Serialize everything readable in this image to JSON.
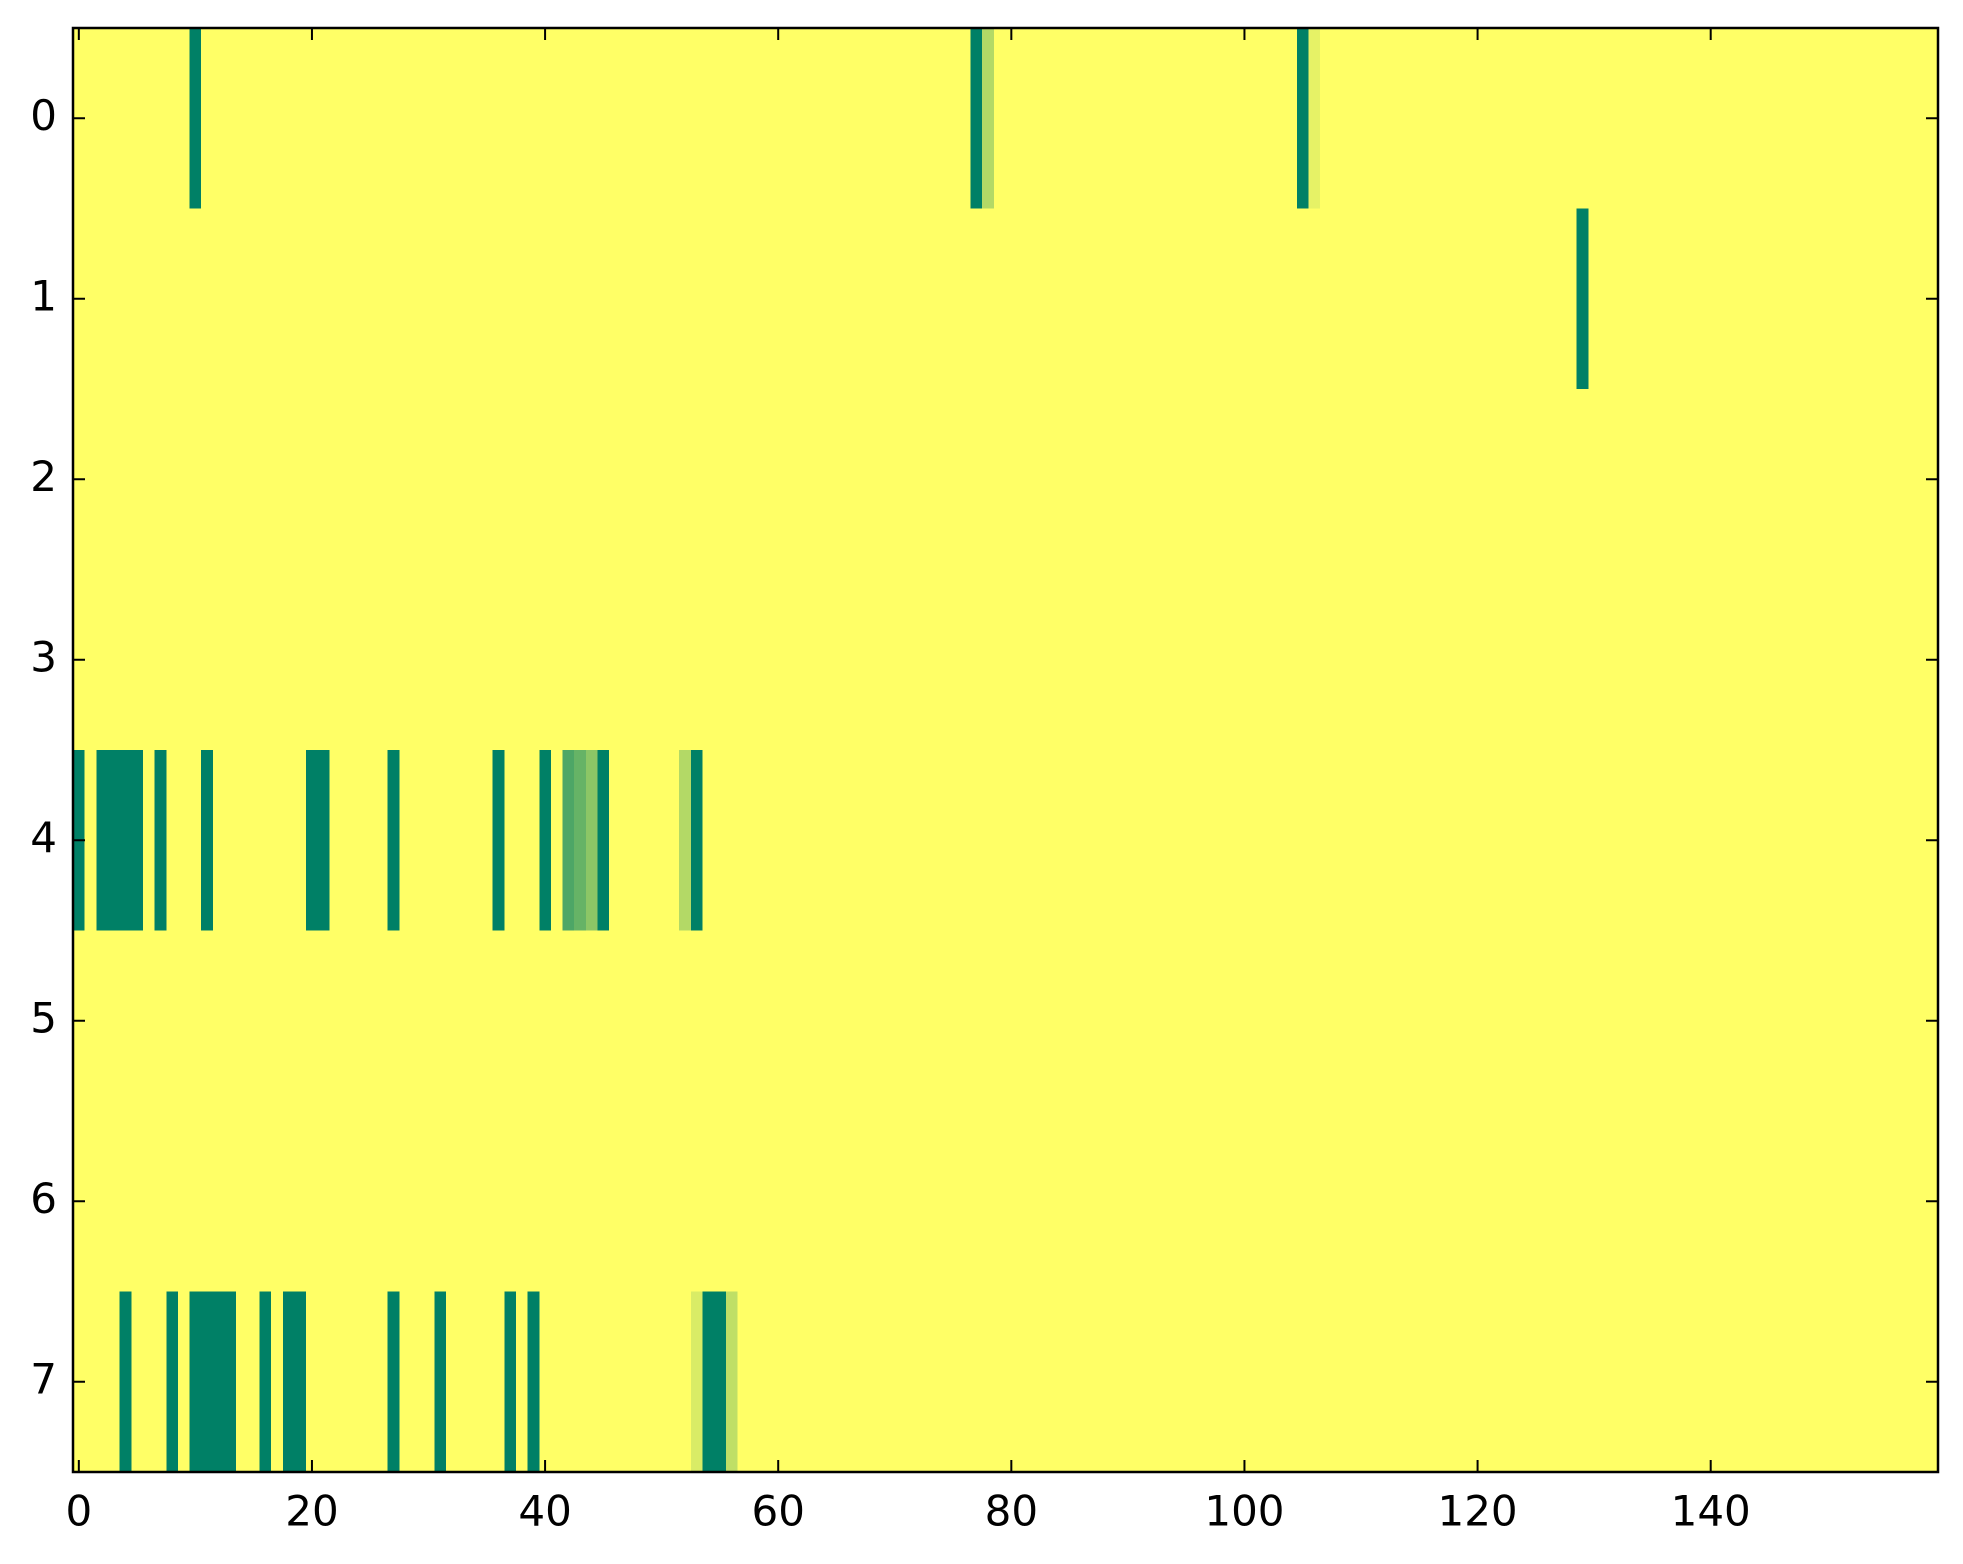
{
  "chart_data": {
    "type": "heatmap",
    "colors": [
      "#ffff66",
      "#008066"
    ],
    "clim": [
      0,
      1
    ],
    "xlim": [
      -0.5,
      159.5
    ],
    "ylim": [
      7.5,
      -0.5
    ],
    "xticks": [
      0,
      20,
      40,
      60,
      80,
      100,
      120,
      140
    ],
    "yticks": [
      0,
      1,
      2,
      3,
      4,
      5,
      6,
      7
    ],
    "values": [
      [
        0,
        0,
        0,
        0,
        0,
        0,
        0,
        0,
        0,
        0,
        1,
        0,
        0,
        0,
        0,
        0,
        0,
        0,
        0,
        0,
        0,
        0,
        0,
        0,
        0,
        0,
        0,
        0,
        0,
        0,
        0,
        0,
        0,
        0,
        0,
        0,
        0,
        0,
        0,
        0,
        0,
        0,
        0,
        0,
        0,
        0,
        0,
        0,
        0,
        0,
        0,
        0,
        0,
        0,
        0,
        0,
        0,
        0,
        0,
        0,
        0,
        0,
        0,
        0,
        0,
        0,
        0,
        0,
        0,
        0,
        0,
        0,
        0,
        0,
        0,
        0,
        0,
        1,
        0.3,
        0,
        0,
        0,
        0,
        0,
        0,
        0,
        0,
        0,
        0,
        0,
        0,
        0,
        0,
        0,
        0,
        0,
        0,
        0,
        0,
        0,
        0,
        0,
        0,
        0,
        0,
        1,
        0.1,
        0,
        0,
        0,
        0,
        0,
        0,
        0,
        0,
        0,
        0,
        0,
        0,
        0,
        0,
        0,
        0,
        0,
        0,
        0,
        0,
        0,
        0,
        0,
        0,
        0,
        0,
        0,
        0,
        0,
        0,
        0,
        0,
        0,
        0,
        0,
        0,
        0,
        0,
        0,
        0,
        0,
        0,
        0,
        0,
        0,
        0,
        0,
        0,
        0,
        0,
        0,
        0,
        0
      ],
      [
        0,
        0,
        0,
        0,
        0,
        0,
        0,
        0,
        0,
        0,
        0,
        0,
        0,
        0,
        0,
        0,
        0,
        0,
        0,
        0,
        0,
        0,
        0,
        0,
        0,
        0,
        0,
        0,
        0,
        0,
        0,
        0,
        0,
        0,
        0,
        0,
        0,
        0,
        0,
        0,
        0,
        0,
        0,
        0,
        0,
        0,
        0,
        0,
        0,
        0,
        0,
        0,
        0,
        0,
        0,
        0,
        0,
        0,
        0,
        0,
        0,
        0,
        0,
        0,
        0,
        0,
        0,
        0,
        0,
        0,
        0,
        0,
        0,
        0,
        0,
        0,
        0,
        0,
        0,
        0,
        0,
        0,
        0,
        0,
        0,
        0,
        0,
        0,
        0,
        0,
        0,
        0,
        0,
        0,
        0,
        0,
        0,
        0,
        0,
        0,
        0,
        0,
        0,
        0,
        0,
        0,
        0,
        0,
        0,
        0,
        0,
        0,
        0,
        0,
        0,
        0,
        0,
        0,
        0,
        0,
        0,
        0,
        0,
        0,
        0,
        0,
        0,
        0,
        0,
        1,
        0,
        0,
        0,
        0,
        0,
        0,
        0,
        0,
        0,
        0,
        0,
        0,
        0,
        0,
        0,
        0,
        0,
        0,
        0,
        0,
        0,
        0,
        0,
        0,
        0,
        0,
        0,
        0,
        0,
        0
      ],
      [
        0,
        0,
        0,
        0,
        0,
        0,
        0,
        0,
        0,
        0,
        0,
        0,
        0,
        0,
        0,
        0,
        0,
        0,
        0,
        0,
        0,
        0,
        0,
        0,
        0,
        0,
        0,
        0,
        0,
        0,
        0,
        0,
        0,
        0,
        0,
        0,
        0,
        0,
        0,
        0,
        0,
        0,
        0,
        0,
        0,
        0,
        0,
        0,
        0,
        0,
        0,
        0,
        0,
        0,
        0,
        0,
        0,
        0,
        0,
        0,
        0,
        0,
        0,
        0,
        0,
        0,
        0,
        0,
        0,
        0,
        0,
        0,
        0,
        0,
        0,
        0,
        0,
        0,
        0,
        0,
        0,
        0,
        0,
        0,
        0,
        0,
        0,
        0,
        0,
        0,
        0,
        0,
        0,
        0,
        0,
        0,
        0,
        0,
        0,
        0,
        0,
        0,
        0,
        0,
        0,
        0,
        0,
        0,
        0,
        0,
        0,
        0,
        0,
        0,
        0,
        0,
        0,
        0,
        0,
        0,
        0,
        0,
        0,
        0,
        0,
        0,
        0,
        0,
        0,
        0,
        0,
        0,
        0,
        0,
        0,
        0,
        0,
        0,
        0,
        0,
        0,
        0,
        0,
        0,
        0,
        0,
        0,
        0,
        0,
        0,
        0,
        0,
        0,
        0,
        0,
        0,
        0,
        0,
        0,
        0
      ],
      [
        0,
        0,
        0,
        0,
        0,
        0,
        0,
        0,
        0,
        0,
        0,
        0,
        0,
        0,
        0,
        0,
        0,
        0,
        0,
        0,
        0,
        0,
        0,
        0,
        0,
        0,
        0,
        0,
        0,
        0,
        0,
        0,
        0,
        0,
        0,
        0,
        0,
        0,
        0,
        0,
        0,
        0,
        0,
        0,
        0,
        0,
        0,
        0,
        0,
        0,
        0,
        0,
        0,
        0,
        0,
        0,
        0,
        0,
        0,
        0,
        0,
        0,
        0,
        0,
        0,
        0,
        0,
        0,
        0,
        0,
        0,
        0,
        0,
        0,
        0,
        0,
        0,
        0,
        0,
        0,
        0,
        0,
        0,
        0,
        0,
        0,
        0,
        0,
        0,
        0,
        0,
        0,
        0,
        0,
        0,
        0,
        0,
        0,
        0,
        0,
        0,
        0,
        0,
        0,
        0,
        0,
        0,
        0,
        0,
        0,
        0,
        0,
        0,
        0,
        0,
        0,
        0,
        0,
        0,
        0,
        0,
        0,
        0,
        0,
        0,
        0,
        0,
        0,
        0,
        0,
        0,
        0,
        0,
        0,
        0,
        0,
        0,
        0,
        0,
        0,
        0,
        0,
        0,
        0,
        0,
        0,
        0,
        0,
        0,
        0,
        0,
        0,
        0,
        0,
        0,
        0,
        0,
        0,
        0,
        0
      ],
      [
        1,
        0,
        1,
        1,
        1,
        1,
        0,
        1,
        0,
        0,
        0,
        1,
        0,
        0,
        0,
        0,
        0,
        0,
        0,
        0,
        1,
        1,
        0,
        0,
        0,
        0,
        0,
        1,
        0,
        0,
        0,
        0,
        0,
        0,
        0,
        0,
        1,
        0,
        0,
        0,
        1,
        0,
        0.7,
        0.6,
        0.45,
        1,
        0,
        0,
        0,
        0,
        0,
        0,
        0.3,
        1,
        0,
        0,
        0,
        0,
        0,
        0,
        0,
        0,
        0,
        0,
        0,
        0,
        0,
        0,
        0,
        0,
        0,
        0,
        0,
        0,
        0,
        0,
        0,
        0,
        0,
        0,
        0,
        0,
        0,
        0,
        0,
        0,
        0,
        0,
        0,
        0,
        0,
        0,
        0,
        0,
        0,
        0,
        0,
        0,
        0,
        0,
        0,
        0,
        0,
        0,
        0,
        0,
        0,
        0,
        0,
        0,
        0,
        0,
        0,
        0,
        0,
        0,
        0,
        0,
        0,
        0,
        0,
        0,
        0,
        0,
        0,
        0,
        0,
        0,
        0,
        0,
        0,
        0,
        0,
        0,
        0,
        0,
        0,
        0,
        0,
        0,
        0,
        0,
        0,
        0,
        0,
        0,
        0,
        0,
        0,
        0,
        0,
        0,
        0,
        0,
        0,
        0,
        0,
        0,
        0,
        0
      ],
      [
        0,
        0,
        0,
        0,
        0,
        0,
        0,
        0,
        0,
        0,
        0,
        0,
        0,
        0,
        0,
        0,
        0,
        0,
        0,
        0,
        0,
        0,
        0,
        0,
        0,
        0,
        0,
        0,
        0,
        0,
        0,
        0,
        0,
        0,
        0,
        0,
        0,
        0,
        0,
        0,
        0,
        0,
        0,
        0,
        0,
        0,
        0,
        0,
        0,
        0,
        0,
        0,
        0,
        0,
        0,
        0,
        0,
        0,
        0,
        0,
        0,
        0,
        0,
        0,
        0,
        0,
        0,
        0,
        0,
        0,
        0,
        0,
        0,
        0,
        0,
        0,
        0,
        0,
        0,
        0,
        0,
        0,
        0,
        0,
        0,
        0,
        0,
        0,
        0,
        0,
        0,
        0,
        0,
        0,
        0,
        0,
        0,
        0,
        0,
        0,
        0,
        0,
        0,
        0,
        0,
        0,
        0,
        0,
        0,
        0,
        0,
        0,
        0,
        0,
        0,
        0,
        0,
        0,
        0,
        0,
        0,
        0,
        0,
        0,
        0,
        0,
        0,
        0,
        0,
        0,
        0,
        0,
        0,
        0,
        0,
        0,
        0,
        0,
        0,
        0,
        0,
        0,
        0,
        0,
        0,
        0,
        0,
        0,
        0,
        0,
        0,
        0,
        0,
        0,
        0,
        0,
        0,
        0,
        0,
        0
      ],
      [
        0,
        0,
        0,
        0,
        0,
        0,
        0,
        0,
        0,
        0,
        0,
        0,
        0,
        0,
        0,
        0,
        0,
        0,
        0,
        0,
        0,
        0,
        0,
        0,
        0,
        0,
        0,
        0,
        0,
        0,
        0,
        0,
        0,
        0,
        0,
        0,
        0,
        0,
        0,
        0,
        0,
        0,
        0,
        0,
        0,
        0,
        0,
        0,
        0,
        0,
        0,
        0,
        0,
        0,
        0,
        0,
        0,
        0,
        0,
        0,
        0,
        0,
        0,
        0,
        0,
        0,
        0,
        0,
        0,
        0,
        0,
        0,
        0,
        0,
        0,
        0,
        0,
        0,
        0,
        0,
        0,
        0,
        0,
        0,
        0,
        0,
        0,
        0,
        0,
        0,
        0,
        0,
        0,
        0,
        0,
        0,
        0,
        0,
        0,
        0,
        0,
        0,
        0,
        0,
        0,
        0,
        0,
        0,
        0,
        0,
        0,
        0,
        0,
        0,
        0,
        0,
        0,
        0,
        0,
        0,
        0,
        0,
        0,
        0,
        0,
        0,
        0,
        0,
        0,
        0,
        0,
        0,
        0,
        0,
        0,
        0,
        0,
        0,
        0,
        0,
        0,
        0,
        0,
        0,
        0,
        0,
        0,
        0,
        0,
        0,
        0,
        0,
        0,
        0,
        0,
        0,
        0,
        0,
        0,
        0
      ],
      [
        0,
        0,
        0,
        0,
        1,
        0,
        0,
        0,
        1,
        0,
        1,
        1,
        1,
        1,
        0,
        0,
        1,
        0,
        1,
        1,
        0,
        0,
        0,
        0,
        0,
        0,
        0,
        1,
        0,
        0,
        0,
        1,
        0,
        0,
        0,
        0,
        0,
        1,
        0,
        1,
        0,
        0,
        0,
        0,
        0,
        0,
        0,
        0,
        0,
        0,
        0,
        0,
        0,
        0.15,
        1,
        1,
        0.25,
        0,
        0,
        0,
        0,
        0,
        0,
        0,
        0,
        0,
        0,
        0,
        0,
        0,
        0,
        0,
        0,
        0,
        0,
        0,
        0,
        0,
        0,
        0,
        0,
        0,
        0,
        0,
        0,
        0,
        0,
        0,
        0,
        0,
        0,
        0,
        0,
        0,
        0,
        0,
        0,
        0,
        0,
        0,
        0,
        0,
        0,
        0,
        0,
        0,
        0,
        0,
        0,
        0,
        0,
        0,
        0,
        0,
        0,
        0,
        0,
        0,
        0,
        0,
        0,
        0,
        0,
        0,
        0,
        0,
        0,
        0,
        0,
        0,
        0,
        0,
        0,
        0,
        0,
        0,
        0,
        0,
        0,
        0,
        0,
        0,
        0,
        0,
        0,
        0,
        0,
        0,
        0,
        0,
        0,
        0,
        0,
        0,
        0,
        0,
        0,
        0,
        0,
        0
      ]
    ]
  }
}
